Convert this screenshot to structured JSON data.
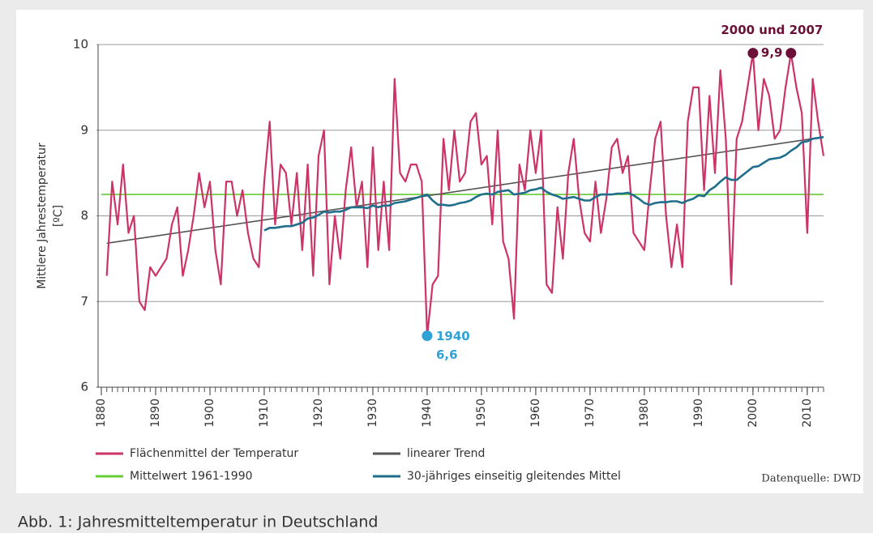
{
  "chart_data": {
    "type": "line",
    "ylabel": [
      "Mittlere Jahrestemperatur",
      "[ºC]"
    ],
    "caption": "Abb. 1: Jahresmitteltemperatur in Deutschland",
    "source": "Datenquelle: DWD",
    "x": [
      1881,
      1882,
      1883,
      1884,
      1885,
      1886,
      1887,
      1888,
      1889,
      1890,
      1891,
      1892,
      1893,
      1894,
      1895,
      1896,
      1897,
      1898,
      1899,
      1900,
      1901,
      1902,
      1903,
      1904,
      1905,
      1906,
      1907,
      1908,
      1909,
      1910,
      1911,
      1912,
      1913,
      1914,
      1915,
      1916,
      1917,
      1918,
      1919,
      1920,
      1921,
      1922,
      1923,
      1924,
      1925,
      1926,
      1927,
      1928,
      1929,
      1930,
      1931,
      1932,
      1933,
      1934,
      1935,
      1936,
      1937,
      1938,
      1939,
      1940,
      1941,
      1942,
      1943,
      1944,
      1945,
      1946,
      1947,
      1948,
      1949,
      1950,
      1951,
      1952,
      1953,
      1954,
      1955,
      1956,
      1957,
      1958,
      1959,
      1960,
      1961,
      1962,
      1963,
      1964,
      1965,
      1966,
      1967,
      1968,
      1969,
      1970,
      1971,
      1972,
      1973,
      1974,
      1975,
      1976,
      1977,
      1978,
      1979,
      1980,
      1981,
      1982,
      1983,
      1984,
      1985,
      1986,
      1987,
      1988,
      1989,
      1990,
      1991,
      1992,
      1993,
      1994,
      1995,
      1996,
      1997,
      1998,
      1999,
      2000,
      2001,
      2002,
      2003,
      2004,
      2005,
      2006,
      2007,
      2008,
      2009,
      2010,
      2011,
      2012,
      2013
    ],
    "series": [
      {
        "name": "Flächenmittel der Temperatur",
        "color": "#cc3366",
        "width": 2.2,
        "values": [
          7.3,
          8.4,
          7.9,
          8.6,
          7.8,
          8.0,
          7.0,
          6.9,
          7.4,
          7.3,
          7.4,
          7.5,
          7.9,
          8.1,
          7.3,
          7.6,
          8.0,
          8.5,
          8.1,
          8.4,
          7.6,
          7.2,
          8.4,
          8.4,
          8.0,
          8.3,
          7.8,
          7.5,
          7.4,
          8.4,
          9.1,
          7.9,
          8.6,
          8.5,
          7.9,
          8.5,
          7.6,
          8.6,
          7.3,
          8.7,
          9.0,
          7.2,
          8.0,
          7.5,
          8.3,
          8.8,
          8.1,
          8.4,
          7.4,
          8.8,
          7.6,
          8.4,
          7.6,
          9.6,
          8.5,
          8.4,
          8.6,
          8.6,
          8.4,
          6.6,
          7.2,
          7.3,
          8.9,
          8.3,
          9.0,
          8.4,
          8.5,
          9.1,
          9.2,
          8.6,
          8.7,
          7.9,
          9.0,
          7.7,
          7.5,
          6.8,
          8.6,
          8.3,
          9.0,
          8.5,
          9.0,
          7.2,
          7.1,
          8.1,
          7.5,
          8.5,
          8.9,
          8.2,
          7.8,
          7.7,
          8.4,
          7.8,
          8.2,
          8.8,
          8.9,
          8.5,
          8.7,
          7.8,
          7.7,
          7.6,
          8.3,
          8.9,
          9.1,
          8.0,
          7.4,
          7.9,
          7.4,
          9.1,
          9.5,
          9.5,
          8.3,
          9.4,
          8.5,
          9.7,
          8.9,
          7.2,
          8.9,
          9.1,
          9.5,
          9.9,
          9.0,
          9.6,
          9.4,
          8.9,
          9.0,
          9.5,
          9.9,
          9.5,
          9.2,
          7.8,
          9.6,
          9.1,
          8.7
        ]
      },
      {
        "name": "linearer Trend",
        "color": "#555555",
        "width": 1.6,
        "x": [
          1881,
          2013
        ],
        "values": [
          7.68,
          8.92
        ]
      },
      {
        "name": "Mittelwert 1961-1990",
        "color": "#66cc33",
        "width": 1.6,
        "x": [
          1880,
          2013
        ],
        "values": [
          8.25,
          8.25
        ]
      },
      {
        "name": "30-jähriges einseitig gleitendes Mittel",
        "color": "#1f6e8c",
        "width": 2.6,
        "values": [
          null,
          null,
          null,
          null,
          null,
          null,
          null,
          null,
          null,
          null,
          null,
          null,
          null,
          null,
          null,
          null,
          null,
          null,
          null,
          null,
          null,
          null,
          null,
          null,
          null,
          null,
          null,
          null,
          null,
          7.83,
          7.86,
          7.86,
          7.87,
          7.88,
          7.88,
          7.9,
          7.92,
          7.97,
          7.98,
          8.01,
          8.05,
          8.04,
          8.05,
          8.05,
          8.07,
          8.1,
          8.1,
          8.1,
          8.09,
          8.12,
          8.1,
          8.12,
          8.12,
          8.15,
          8.16,
          8.17,
          8.19,
          8.21,
          8.23,
          8.25,
          8.18,
          8.13,
          8.13,
          8.12,
          8.13,
          8.15,
          8.16,
          8.18,
          8.22,
          8.25,
          8.26,
          8.25,
          8.28,
          8.29,
          8.3,
          8.25,
          8.26,
          8.27,
          8.3,
          8.31,
          8.33,
          8.28,
          8.25,
          8.23,
          8.2,
          8.21,
          8.22,
          8.2,
          8.18,
          8.18,
          8.22,
          8.25,
          8.25,
          8.25,
          8.26,
          8.26,
          8.27,
          8.24,
          8.2,
          8.15,
          8.13,
          8.15,
          8.16,
          8.16,
          8.17,
          8.17,
          8.15,
          8.18,
          8.2,
          8.24,
          8.23,
          8.3,
          8.34,
          8.4,
          8.45,
          8.42,
          8.42,
          8.47,
          8.52,
          8.57,
          8.58,
          8.62,
          8.66,
          8.67,
          8.68,
          8.71,
          8.76,
          8.8,
          8.86,
          8.87,
          8.9,
          8.91,
          8.92
        ]
      }
    ],
    "markers": [
      {
        "name": "2000 und 2007",
        "label": "9,9",
        "color": "#6b1036",
        "x": [
          2000,
          2007
        ],
        "values": [
          9.9,
          9.9
        ]
      },
      {
        "name": "1940",
        "label": "6,6",
        "color": "#2fa3d6",
        "x": [
          1940
        ],
        "values": [
          6.6
        ]
      }
    ],
    "xlim": [
      1880,
      2013
    ],
    "xticks": [
      1880,
      1890,
      1900,
      1910,
      1920,
      1930,
      1940,
      1950,
      1960,
      1970,
      1980,
      1990,
      2000,
      2010
    ],
    "ylim": [
      6,
      10
    ],
    "yticks": [
      6,
      7,
      8,
      9,
      10
    ],
    "grid": true
  }
}
